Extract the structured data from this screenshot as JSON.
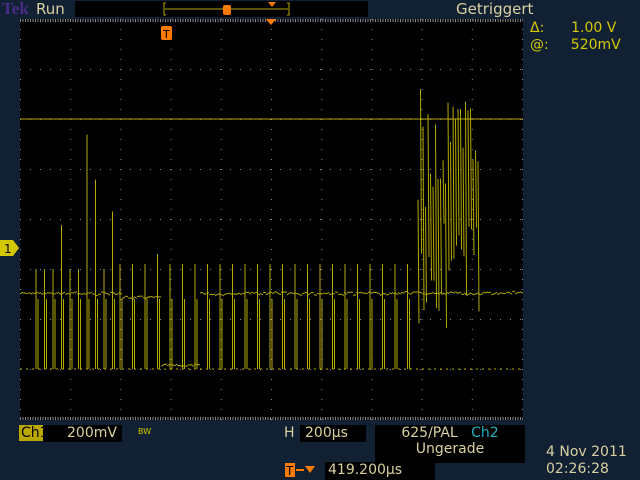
{
  "header": {
    "brand": "Tek",
    "run_state": "Run",
    "trigger_status": "Getriggert"
  },
  "cursor": {
    "delta_label": "Δ:",
    "delta_value": "1.00 V",
    "at_label": "@:",
    "at_value": "520mV"
  },
  "channel": {
    "label": "Ch1",
    "scale": "200mV",
    "bw_mark": "BW",
    "marker": "1"
  },
  "horizontal": {
    "label": "H",
    "scale": "200µs",
    "position": "419.200µs"
  },
  "trigger": {
    "standard": "625/PAL",
    "source": "Ch2",
    "field": "Ungerade",
    "marker": "T"
  },
  "datetime": {
    "date": "4 Nov 2011",
    "time": "02:26:28"
  },
  "colors": {
    "ch1": "#d4c800",
    "trigger": "#ff7a00",
    "background": "#122033"
  }
}
